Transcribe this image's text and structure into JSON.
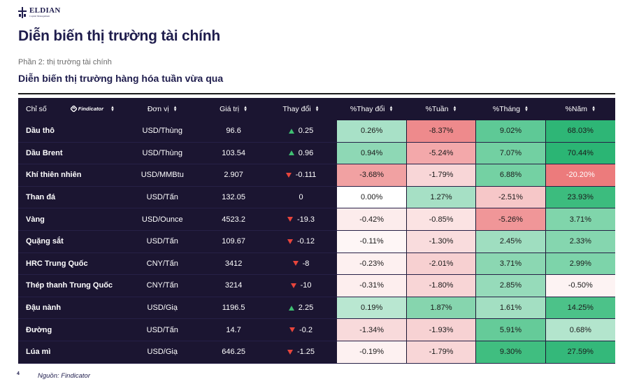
{
  "logo": {
    "name": "ELDIAN",
    "subtitle": "Capital Management"
  },
  "page_title": "Diễn biến thị trường tài chính",
  "section_label": "Phần 2: thị trường tài chính",
  "section_title": "Diễn biến thị trường hàng hóa tuần vừa qua",
  "table": {
    "headers": {
      "name": "Chỉ số",
      "brand": "Findicator",
      "unit": "Đơn vị",
      "price": "Giá trị",
      "change": "Thay đổi",
      "pct_change": "%Thay đổi",
      "pct_week": "%Tuần",
      "pct_month": "%Tháng",
      "pct_year": "%Năm"
    },
    "rows": [
      {
        "name": "Dầu thô",
        "unit": "USD/Thùng",
        "price": "96.6",
        "dir": "up",
        "change": "0.25",
        "pct_change": "0.26%",
        "pct_week": "-8.37%",
        "pct_month": "9.02%",
        "pct_year": "68.03%",
        "colors": [
          "#a8e1c7",
          "#ee8a8c",
          "#5ec996",
          "#2eb676"
        ]
      },
      {
        "name": "Dầu Brent",
        "unit": "USD/Thùng",
        "price": "103.54",
        "dir": "up",
        "change": "0.96",
        "pct_change": "0.94%",
        "pct_week": "-5.24%",
        "pct_month": "7.07%",
        "pct_year": "70.44%",
        "colors": [
          "#8ed8b5",
          "#f3a8aa",
          "#72d0a2",
          "#2bb574"
        ]
      },
      {
        "name": "Khí thiên nhiên",
        "unit": "USD/MMBtu",
        "price": "2.907",
        "dir": "down",
        "change": "-0.111",
        "pct_change": "-3.68%",
        "pct_week": "-1.79%",
        "pct_month": "6.88%",
        "pct_year": "-20.20%",
        "colors": [
          "#f1a1a2",
          "#f8d6d7",
          "#74d1a3",
          "#ec7b7c"
        ]
      },
      {
        "name": "Than đá",
        "unit": "USD/Tấn",
        "price": "132.05",
        "dir": "none",
        "change": "0",
        "pct_change": "0.00%",
        "pct_week": "1.27%",
        "pct_month": "-2.51%",
        "pct_year": "23.93%",
        "colors": [
          "#ffffff",
          "#a6e0c5",
          "#f6c7c8",
          "#3cbc7e"
        ]
      },
      {
        "name": "Vàng",
        "unit": "USD/Ounce",
        "price": "4523.2",
        "dir": "down",
        "change": "-19.3",
        "pct_change": "-0.42%",
        "pct_week": "-0.85%",
        "pct_month": "-5.26%",
        "pct_year": "3.71%",
        "colors": [
          "#fcecec",
          "#fbe3e3",
          "#f09698",
          "#80d5ab"
        ]
      },
      {
        "name": "Quặng sắt",
        "unit": "USD/Tấn",
        "price": "109.67",
        "dir": "down",
        "change": "-0.12",
        "pct_change": "-0.11%",
        "pct_week": "-1.30%",
        "pct_month": "2.45%",
        "pct_year": "2.33%",
        "colors": [
          "#fef6f6",
          "#f9dcdd",
          "#9fdec0",
          "#85d6af"
        ]
      },
      {
        "name": "HRC Trung Quốc",
        "unit": "CNY/Tấn",
        "price": "3412",
        "dir": "down",
        "change": "-8",
        "pct_change": "-0.23%",
        "pct_week": "-2.01%",
        "pct_month": "3.71%",
        "pct_year": "2.99%",
        "colors": [
          "#fdf0f0",
          "#f7d0d1",
          "#8bd7b2",
          "#7dd4aa"
        ]
      },
      {
        "name": "Thép thanh Trung Quốc",
        "unit": "CNY/Tấn",
        "price": "3214",
        "dir": "down",
        "change": "-10",
        "pct_change": "-0.31%",
        "pct_week": "-1.80%",
        "pct_month": "2.85%",
        "pct_year": "-0.50%",
        "colors": [
          "#fdeeee",
          "#f8d5d6",
          "#96dbba",
          "#fdf3f3"
        ]
      },
      {
        "name": "Đậu nành",
        "unit": "USD/Giạ",
        "price": "1196.5",
        "dir": "up",
        "change": "2.25",
        "pct_change": "0.19%",
        "pct_week": "1.87%",
        "pct_month": "1.61%",
        "pct_year": "14.25%",
        "colors": [
          "#b9e7d1",
          "#86d5ae",
          "#a3dfc2",
          "#4cc289"
        ]
      },
      {
        "name": "Đường",
        "unit": "USD/Tấn",
        "price": "14.7",
        "dir": "down",
        "change": "-0.2",
        "pct_change": "-1.34%",
        "pct_week": "-1.93%",
        "pct_month": "5.91%",
        "pct_year": "0.68%",
        "colors": [
          "#f8dadb",
          "#f7d2d3",
          "#65cb99",
          "#b3e5cd"
        ]
      },
      {
        "name": "Lúa mì",
        "unit": "USD/Giạ",
        "price": "646.25",
        "dir": "down",
        "change": "-1.25",
        "pct_change": "-0.19%",
        "pct_week": "-1.79%",
        "pct_month": "9.30%",
        "pct_year": "27.59%",
        "colors": [
          "#fdf1f1",
          "#f8d6d7",
          "#40be80",
          "#34b87a"
        ]
      }
    ]
  },
  "footer": {
    "page_number": "4",
    "source": "Nguồn: Findicator"
  }
}
